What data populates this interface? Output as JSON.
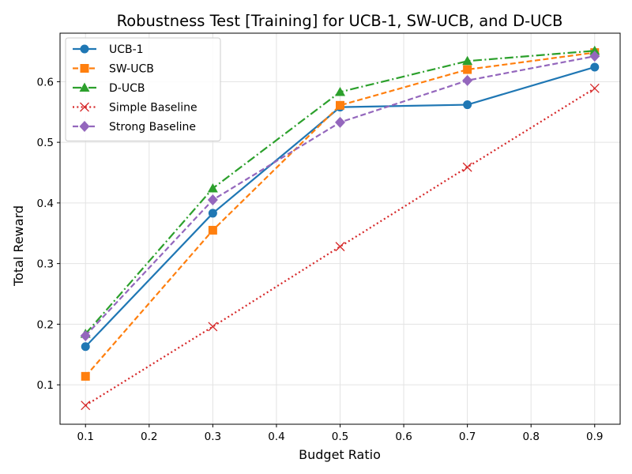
{
  "chart_data": {
    "type": "line",
    "title": "Robustness Test [Training] for UCB-1, SW-UCB, and D-UCB",
    "xlabel": "Budget Ratio",
    "ylabel": "Total Reward",
    "xlim": [
      0.06,
      0.94
    ],
    "ylim": [
      0.035,
      0.68
    ],
    "xticks": [
      "0.1",
      "0.2",
      "0.3",
      "0.4",
      "0.5",
      "0.6",
      "0.7",
      "0.8",
      "0.9"
    ],
    "yticks": [
      "0.1",
      "0.2",
      "0.3",
      "0.4",
      "0.5",
      "0.6"
    ],
    "grid": true,
    "legend_position": "upper-left",
    "x": [
      0.1,
      0.3,
      0.5,
      0.7,
      0.9
    ],
    "series": [
      {
        "name": "UCB-1",
        "values": [
          0.163,
          0.383,
          0.558,
          0.562,
          0.624
        ],
        "color": "#1f77b4",
        "dash": "solid",
        "marker": "circle"
      },
      {
        "name": "SW-UCB",
        "values": [
          0.114,
          0.355,
          0.561,
          0.62,
          0.648
        ],
        "color": "#ff7f0e",
        "dash": "dashed",
        "marker": "square"
      },
      {
        "name": "D-UCB",
        "values": [
          0.184,
          0.424,
          0.583,
          0.634,
          0.651
        ],
        "color": "#2ca02c",
        "dash": "dashdot",
        "marker": "triangle"
      },
      {
        "name": "Simple Baseline",
        "values": [
          0.066,
          0.196,
          0.328,
          0.459,
          0.589
        ],
        "color": "#d62728",
        "dash": "dotted",
        "marker": "x"
      },
      {
        "name": "Strong Baseline",
        "values": [
          0.181,
          0.405,
          0.533,
          0.602,
          0.642
        ],
        "color": "#9467bd",
        "dash": "dashed",
        "marker": "diamond"
      }
    ]
  }
}
